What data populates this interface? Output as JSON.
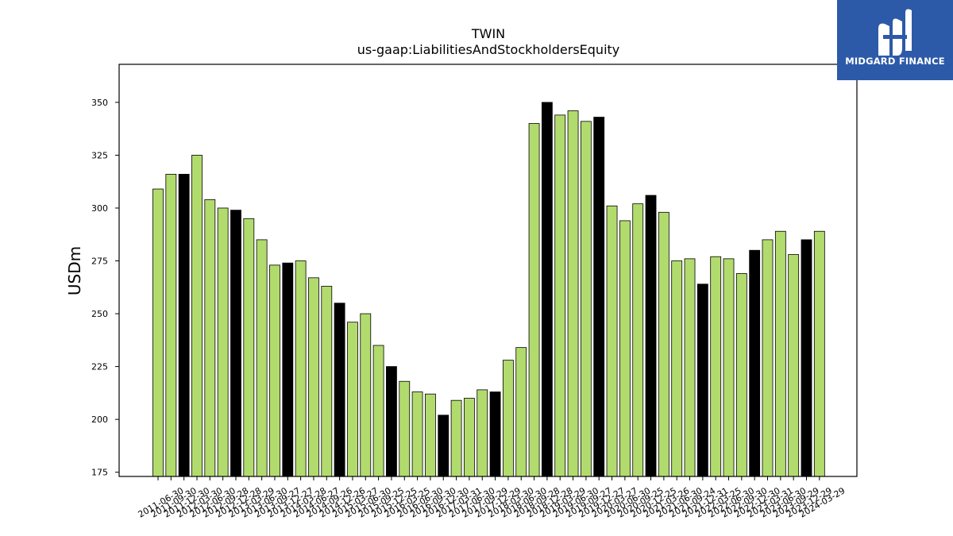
{
  "brand": {
    "name": "MIDGARD FINANCE",
    "bg_color": "#2d5aa8",
    "icon": "midgard-logo-icon"
  },
  "colors": {
    "bar_regular": "#b2db6e",
    "bar_highlight": "#000000",
    "bar_edge": "#000000"
  },
  "chart_data": {
    "type": "bar",
    "title": "TWIN",
    "subtitle": "us-gaap:LiabilitiesAndStockholdersEquity",
    "ylabel": "USDm",
    "xlabel": "",
    "ylim": [
      173,
      368
    ],
    "yticks": [
      175,
      200,
      225,
      250,
      275,
      300,
      325,
      350
    ],
    "grid": false,
    "legend": "none",
    "categories": [
      "2011-06-30",
      "2011-09-30",
      "2011-12-30",
      "2012-03-30",
      "2012-06-30",
      "2012-09-28",
      "2012-12-28",
      "2013-03-29",
      "2013-06-30",
      "2013-09-27",
      "2013-12-27",
      "2014-03-28",
      "2014-06-27",
      "2014-09-26",
      "2014-12-26",
      "2015-03-27",
      "2015-06-30",
      "2015-09-25",
      "2015-12-25",
      "2016-03-25",
      "2016-06-30",
      "2016-09-30",
      "2016-12-30",
      "2017-03-31",
      "2017-06-30",
      "2017-09-29",
      "2017-12-29",
      "2018-03-30",
      "2018-06-30",
      "2018-09-28",
      "2018-12-28",
      "2019-03-29",
      "2019-06-30",
      "2019-09-27",
      "2019-12-27",
      "2020-03-27",
      "2020-06-30",
      "2020-09-25",
      "2020-12-25",
      "2021-03-26",
      "2021-06-30",
      "2021-09-24",
      "2021-12-31",
      "2022-03-25",
      "2022-06-30",
      "2022-09-30",
      "2022-12-30",
      "2023-03-31",
      "2023-06-30",
      "2023-09-29",
      "2023-12-29",
      "2024-03-29"
    ],
    "values": [
      309,
      316,
      316,
      325,
      304,
      300,
      299,
      295,
      285,
      273,
      274,
      275,
      267,
      263,
      255,
      246,
      250,
      235,
      225,
      218,
      213,
      212,
      202,
      209,
      210,
      214,
      213,
      228,
      234,
      340,
      350,
      344,
      346,
      341,
      343,
      301,
      294,
      302,
      306,
      298,
      275,
      276,
      264,
      277,
      276,
      269,
      280,
      285,
      289,
      278,
      285,
      289
    ],
    "highlight": [
      false,
      false,
      true,
      false,
      false,
      false,
      true,
      false,
      false,
      false,
      true,
      false,
      false,
      false,
      true,
      false,
      false,
      false,
      true,
      false,
      false,
      false,
      true,
      false,
      false,
      false,
      true,
      false,
      false,
      false,
      true,
      false,
      false,
      false,
      true,
      false,
      false,
      false,
      true,
      false,
      false,
      false,
      true,
      false,
      false,
      false,
      true,
      false,
      false,
      false,
      true,
      false
    ]
  }
}
